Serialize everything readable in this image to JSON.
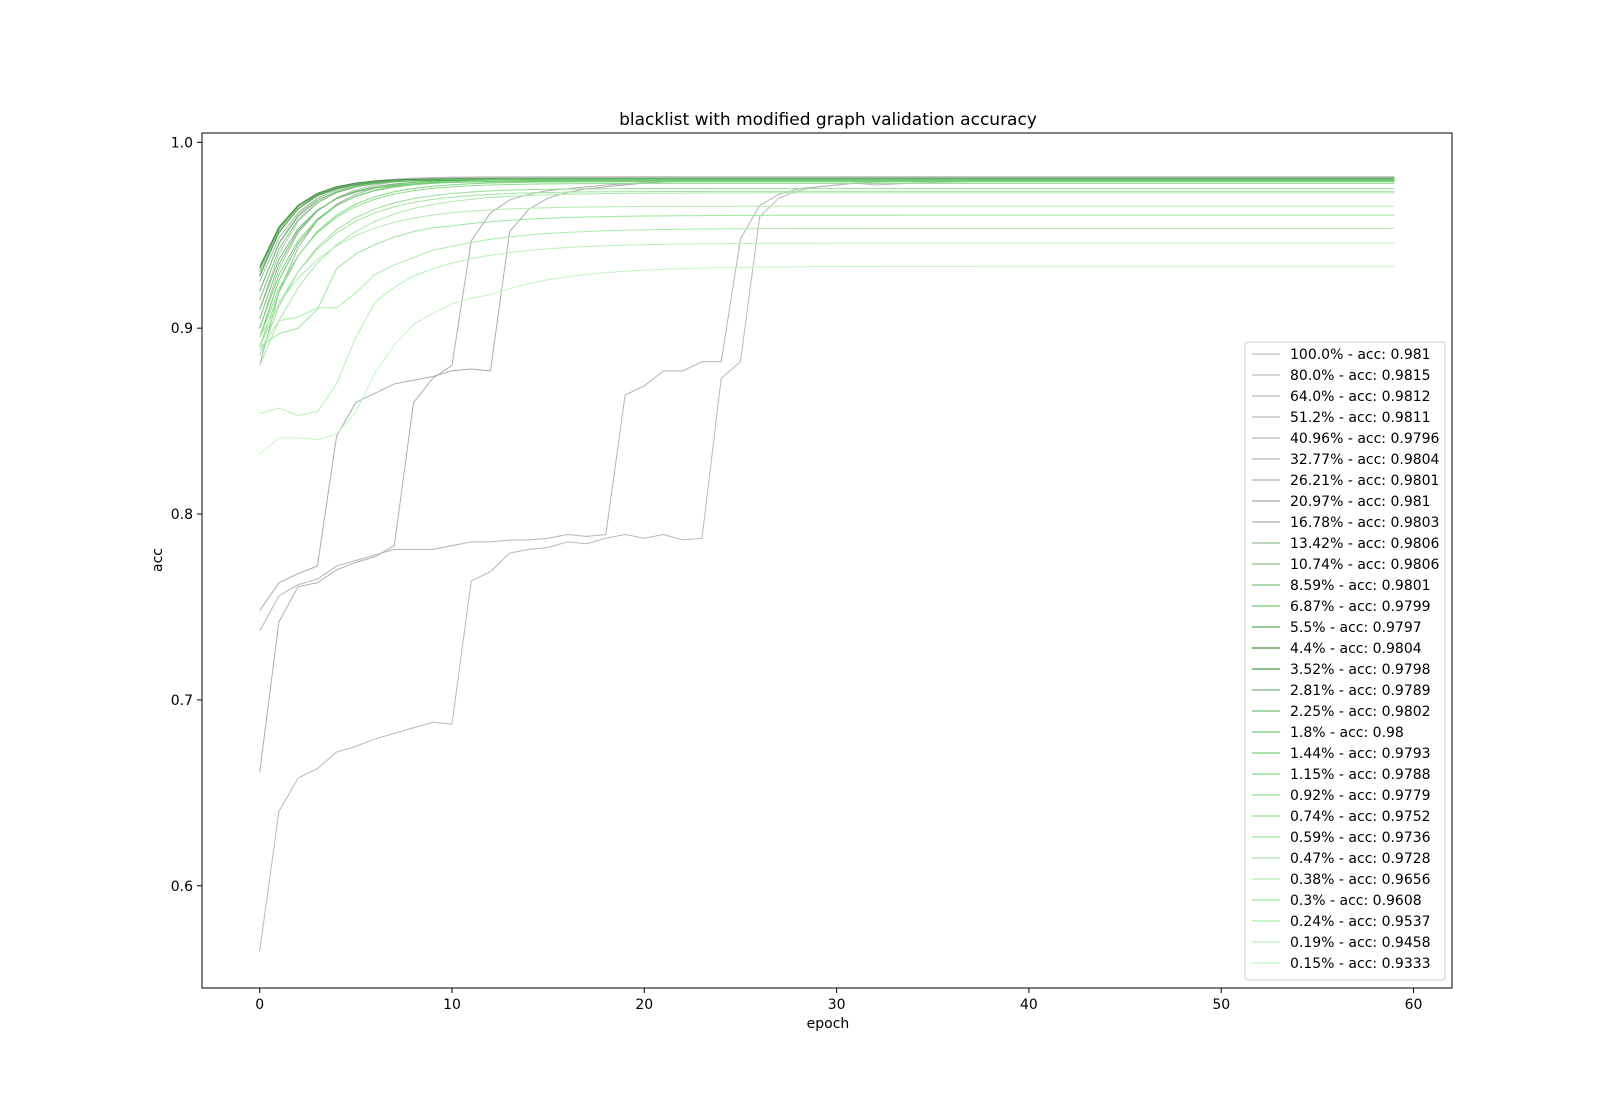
{
  "chart_data": {
    "type": "line",
    "title": "blacklist with modified graph validation accuracy",
    "xlabel": "epoch",
    "ylabel": "acc",
    "xlim": [
      -3,
      62
    ],
    "ylim": [
      0.545,
      1.005
    ],
    "xticks": [
      "0",
      "10",
      "20",
      "30",
      "40",
      "50",
      "60"
    ],
    "yticks": [
      "0.6",
      "0.7",
      "0.8",
      "0.9",
      "1.0"
    ],
    "legend_position": "lower right",
    "grid": false,
    "series": [
      {
        "name": "100.0% - acc: 0.981",
        "color": "#c0c0c0",
        "start": 0.91,
        "end": 0.981,
        "rate": 0.55
      },
      {
        "name": "80.0% - acc: 0.9815",
        "color": "#bfbfbf",
        "start": 0.92,
        "end": 0.9815,
        "rate": 0.55
      },
      {
        "name": "64.0% - acc: 0.9812",
        "color": "#bdbdbd",
        "start": 0.93,
        "end": 0.9812,
        "rate": 0.55
      },
      {
        "name": "51.2% - acc: 0.9811",
        "color": "#bcbcbc",
        "start": 0.9,
        "end": 0.9811,
        "rate": 0.5
      },
      {
        "name": "40.96% - acc: 0.9796",
        "color": "#b8b8b8",
        "start": 0.565,
        "end": 0.9796,
        "steps": [
          [
            0,
            0.565
          ],
          [
            1,
            0.64
          ],
          [
            2,
            0.658
          ],
          [
            3,
            0.663
          ],
          [
            4,
            0.672
          ],
          [
            5,
            0.675
          ],
          [
            6,
            0.679
          ],
          [
            7,
            0.682
          ],
          [
            8,
            0.685
          ],
          [
            9,
            0.688
          ],
          [
            10,
            0.687
          ],
          [
            11,
            0.764
          ],
          [
            12,
            0.769
          ],
          [
            13,
            0.779
          ],
          [
            14,
            0.781
          ],
          [
            15,
            0.782
          ],
          [
            16,
            0.785
          ],
          [
            17,
            0.784
          ],
          [
            18,
            0.787
          ],
          [
            19,
            0.789
          ],
          [
            20,
            0.787
          ],
          [
            21,
            0.789
          ],
          [
            22,
            0.786
          ],
          [
            23,
            0.787
          ],
          [
            24,
            0.873
          ],
          [
            25,
            0.882
          ],
          [
            26,
            0.96
          ],
          [
            27,
            0.97
          ],
          [
            28,
            0.974
          ],
          [
            29,
            0.976
          ],
          [
            30,
            0.977
          ],
          [
            31,
            0.978
          ],
          [
            32,
            0.977
          ]
        ]
      },
      {
        "name": "32.77% - acc: 0.9804",
        "color": "#b4b4b4",
        "start": 0.737,
        "end": 0.9804,
        "steps": [
          [
            0,
            0.737
          ],
          [
            1,
            0.756
          ],
          [
            2,
            0.762
          ],
          [
            3,
            0.765
          ],
          [
            4,
            0.772
          ],
          [
            5,
            0.775
          ],
          [
            6,
            0.778
          ],
          [
            7,
            0.781
          ],
          [
            8,
            0.781
          ],
          [
            9,
            0.781
          ],
          [
            10,
            0.783
          ],
          [
            11,
            0.785
          ],
          [
            12,
            0.785
          ],
          [
            13,
            0.786
          ],
          [
            14,
            0.786
          ],
          [
            15,
            0.787
          ],
          [
            16,
            0.789
          ],
          [
            17,
            0.788
          ],
          [
            18,
            0.789
          ],
          [
            19,
            0.864
          ],
          [
            20,
            0.869
          ],
          [
            21,
            0.877
          ],
          [
            22,
            0.877
          ],
          [
            23,
            0.882
          ],
          [
            24,
            0.882
          ],
          [
            25,
            0.948
          ],
          [
            26,
            0.966
          ],
          [
            27,
            0.972
          ],
          [
            28,
            0.975
          ],
          [
            29,
            0.976
          ],
          [
            30,
            0.977
          ],
          [
            31,
            0.978
          ]
        ]
      },
      {
        "name": "26.21% - acc: 0.9801",
        "color": "#b0b0b0",
        "start": 0.661,
        "end": 0.9801,
        "steps": [
          [
            0,
            0.661
          ],
          [
            1,
            0.742
          ],
          [
            2,
            0.761
          ],
          [
            3,
            0.763
          ],
          [
            4,
            0.77
          ],
          [
            5,
            0.774
          ],
          [
            6,
            0.777
          ],
          [
            7,
            0.783
          ],
          [
            8,
            0.86
          ],
          [
            9,
            0.873
          ],
          [
            10,
            0.88
          ],
          [
            11,
            0.947
          ],
          [
            12,
            0.962
          ],
          [
            13,
            0.969
          ],
          [
            14,
            0.972
          ],
          [
            15,
            0.974
          ],
          [
            16,
            0.975
          ],
          [
            17,
            0.976
          ],
          [
            18,
            0.977
          ]
        ]
      },
      {
        "name": "20.97% - acc: 0.981",
        "color": "#adadad",
        "start": 0.748,
        "end": 0.981,
        "steps": [
          [
            0,
            0.748
          ],
          [
            1,
            0.763
          ],
          [
            2,
            0.768
          ],
          [
            3,
            0.772
          ],
          [
            4,
            0.842
          ],
          [
            5,
            0.86
          ],
          [
            6,
            0.865
          ],
          [
            7,
            0.87
          ],
          [
            8,
            0.872
          ],
          [
            9,
            0.874
          ],
          [
            10,
            0.877
          ],
          [
            11,
            0.878
          ],
          [
            12,
            0.877
          ],
          [
            13,
            0.952
          ],
          [
            14,
            0.964
          ],
          [
            15,
            0.97
          ],
          [
            16,
            0.973
          ],
          [
            17,
            0.975
          ],
          [
            18,
            0.976
          ]
        ]
      },
      {
        "name": "16.78% - acc: 0.9803",
        "color": "#a8b4a8",
        "start": 0.88,
        "end": 0.9803,
        "rate": 0.5
      },
      {
        "name": "13.42% - acc: 0.9806",
        "color": "#9dba9d",
        "start": 0.925,
        "end": 0.9806,
        "rate": 0.55
      },
      {
        "name": "10.74% - acc: 0.9806",
        "color": "#8cbf8c",
        "start": 0.93,
        "end": 0.9806,
        "rate": 0.6
      },
      {
        "name": "8.59% - acc: 0.9801",
        "color": "#7cc47c",
        "start": 0.915,
        "end": 0.9801,
        "rate": 0.55
      },
      {
        "name": "6.87% - acc: 0.9799",
        "color": "#6cc96c",
        "start": 0.905,
        "end": 0.9799,
        "rate": 0.5
      },
      {
        "name": "5.5% - acc: 0.9797",
        "color": "#5cae5c",
        "start": 0.932,
        "end": 0.9797,
        "rate": 0.6
      },
      {
        "name": "4.4% - acc: 0.9804",
        "color": "#3f8f3f",
        "start": 0.933,
        "end": 0.9804,
        "rate": 0.6
      },
      {
        "name": "3.52% - acc: 0.9798",
        "color": "#4c9c4c",
        "start": 0.928,
        "end": 0.9798,
        "rate": 0.6
      },
      {
        "name": "2.81% - acc: 0.9789",
        "color": "#78b878",
        "start": 0.91,
        "end": 0.9789,
        "rate": 0.5
      },
      {
        "name": "2.25% - acc: 0.9802",
        "color": "#6fbf6f",
        "start": 0.92,
        "end": 0.9802,
        "rate": 0.55
      },
      {
        "name": "1.8% - acc: 0.98",
        "color": "#72cd72",
        "start": 0.895,
        "end": 0.98,
        "rate": 0.45
      },
      {
        "name": "1.44% - acc: 0.9793",
        "color": "#7bd47b",
        "start": 0.9,
        "end": 0.9793,
        "rate": 0.45
      },
      {
        "name": "1.15% - acc: 0.9788",
        "color": "#85d985",
        "start": 0.89,
        "end": 0.9788,
        "rate": 0.4
      },
      {
        "name": "0.92% - acc: 0.9779",
        "color": "#8fdd8f",
        "start": 0.895,
        "end": 0.9779,
        "rate": 0.38
      },
      {
        "name": "0.74% - acc: 0.9752",
        "color": "#99e199",
        "start": 0.885,
        "end": 0.9752,
        "rate": 0.35
      },
      {
        "name": "0.59% - acc: 0.9736",
        "color": "#a2e5a2",
        "start": 0.89,
        "end": 0.9736,
        "rate": 0.33
      },
      {
        "name": "0.47% - acc: 0.9728",
        "color": "#aae8aa",
        "start": 0.88,
        "end": 0.9728,
        "rate": 0.3
      },
      {
        "name": "0.38% - acc: 0.9656",
        "color": "#b2ecb2",
        "start": 0.895,
        "end": 0.9656,
        "rate": 0.3
      },
      {
        "name": "0.3% - acc: 0.9608",
        "color": "#9ae89a",
        "start": 0.89,
        "end": 0.9608,
        "steps": [
          [
            0,
            0.89
          ],
          [
            1,
            0.897
          ],
          [
            2,
            0.9
          ],
          [
            3,
            0.91
          ],
          [
            4,
            0.932
          ],
          [
            5,
            0.94
          ],
          [
            6,
            0.945
          ],
          [
            7,
            0.949
          ],
          [
            8,
            0.952
          ],
          [
            9,
            0.954
          ],
          [
            10,
            0.955
          ]
        ]
      },
      {
        "name": "0.24% - acc: 0.9537",
        "color": "#a8eea8",
        "start": 0.888,
        "end": 0.9537,
        "steps": [
          [
            0,
            0.888
          ],
          [
            1,
            0.904
          ],
          [
            2,
            0.906
          ],
          [
            3,
            0.911
          ],
          [
            4,
            0.911
          ],
          [
            5,
            0.919
          ],
          [
            6,
            0.929
          ],
          [
            7,
            0.934
          ],
          [
            8,
            0.938
          ],
          [
            9,
            0.942
          ],
          [
            10,
            0.944
          ]
        ]
      },
      {
        "name": "0.19% - acc: 0.9458",
        "color": "#b5f2b5",
        "start": 0.854,
        "end": 0.9458,
        "steps": [
          [
            0,
            0.854
          ],
          [
            1,
            0.857
          ],
          [
            2,
            0.853
          ],
          [
            3,
            0.855
          ],
          [
            4,
            0.87
          ],
          [
            5,
            0.895
          ],
          [
            6,
            0.914
          ],
          [
            7,
            0.922
          ],
          [
            8,
            0.928
          ],
          [
            9,
            0.932
          ],
          [
            10,
            0.935
          ]
        ]
      },
      {
        "name": "0.15% - acc: 0.9333",
        "color": "#c0f5c0",
        "start": 0.832,
        "end": 0.9333,
        "steps": [
          [
            0,
            0.832
          ],
          [
            1,
            0.841
          ],
          [
            2,
            0.841
          ],
          [
            3,
            0.84
          ],
          [
            4,
            0.843
          ],
          [
            5,
            0.855
          ],
          [
            6,
            0.876
          ],
          [
            7,
            0.891
          ],
          [
            8,
            0.902
          ],
          [
            9,
            0.908
          ],
          [
            10,
            0.913
          ],
          [
            11,
            0.916
          ],
          [
            12,
            0.918
          ]
        ]
      }
    ]
  }
}
